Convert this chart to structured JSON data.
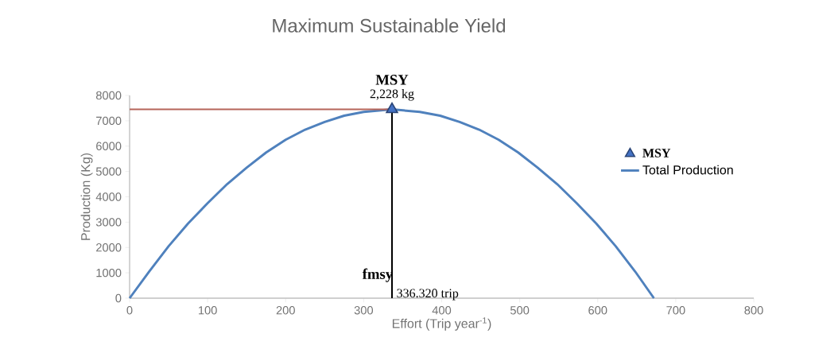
{
  "chart_data": {
    "type": "line",
    "title": "Maximum Sustainable Yield",
    "xlabel": "Effort (Trip year$^{-1}$)",
    "ylabel": "Production (Kg)",
    "xlim": [
      0,
      800
    ],
    "xticks": [
      0,
      100,
      200,
      300,
      400,
      500,
      600,
      700,
      800
    ],
    "ylim": [
      0,
      8000
    ],
    "yticks": [
      0,
      1000,
      2000,
      3000,
      4000,
      5000,
      6000,
      7000,
      8000
    ],
    "legend": "right",
    "series": [
      {
        "name": "MSY",
        "type": "scatter",
        "marker": "triangle",
        "color": "#4472c4",
        "x": [
          336.32
        ],
        "values": [
          7450
        ]
      },
      {
        "name": "Total Production",
        "color": "#4f81bd",
        "x": [
          0,
          25,
          50,
          75,
          100,
          125,
          150,
          175,
          200,
          225,
          250,
          275,
          300,
          336,
          372,
          398,
          423,
          448,
          473,
          498,
          523,
          548,
          573,
          598,
          623,
          648,
          672
        ],
        "values": [
          0,
          1050,
          2050,
          2950,
          3750,
          4500,
          5150,
          5750,
          6250,
          6650,
          6950,
          7200,
          7350,
          7450,
          7350,
          7200,
          6950,
          6650,
          6250,
          5750,
          5150,
          4500,
          3750,
          2950,
          2050,
          1050,
          0
        ]
      },
      {
        "color": "#b5655a",
        "x": [
          0,
          336.32
        ],
        "values": [
          7450,
          7450
        ]
      }
    ],
    "ref_lines": [
      {
        "axis": "x",
        "value": 336.32,
        "label": "fmsy",
        "color": "#000000"
      }
    ],
    "annotations": [
      {
        "text": "MSY",
        "x": 336.32,
        "y": 7450
      },
      {
        "text": "2,228 kg",
        "x": 336.32,
        "y": 7450
      },
      "336.320 trip"
    ]
  }
}
